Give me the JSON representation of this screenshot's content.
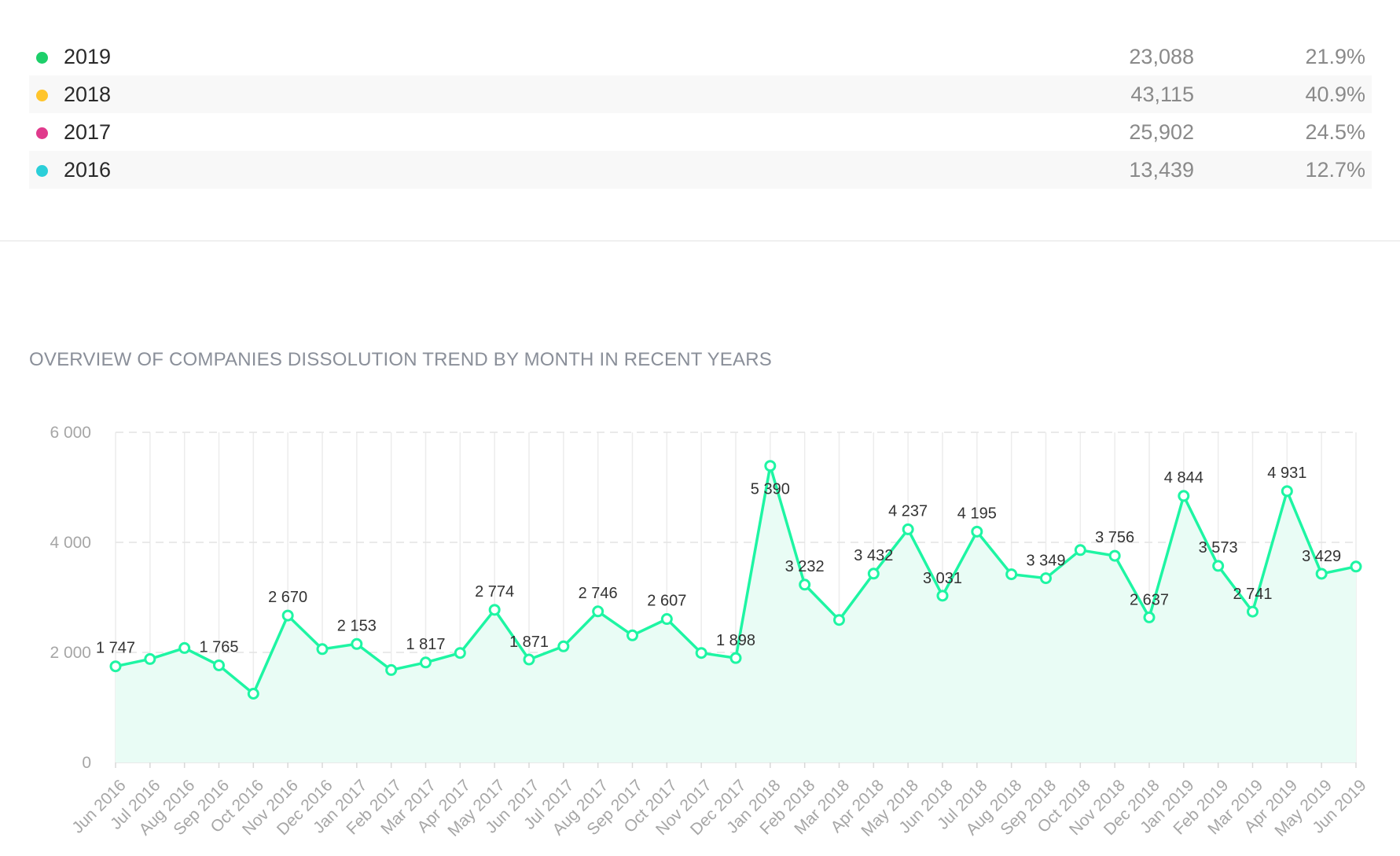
{
  "legend": {
    "rows": [
      {
        "label": "2019",
        "count": "23,088",
        "pct": "21.9%",
        "color": "#1dcf6a"
      },
      {
        "label": "2018",
        "count": "43,115",
        "pct": "40.9%",
        "color": "#ffc52c"
      },
      {
        "label": "2017",
        "count": "25,902",
        "pct": "24.5%",
        "color": "#e03a8c"
      },
      {
        "label": "2016",
        "count": "13,439",
        "pct": "12.7%",
        "color": "#2bcfd9"
      }
    ]
  },
  "chart_title": "OVERVIEW OF COMPANIES DISSOLUTION TREND BY MONTH IN RECENT YEARS",
  "chart_data": {
    "type": "area",
    "title": "OVERVIEW OF COMPANIES DISSOLUTION TREND BY MONTH IN RECENT YEARS",
    "xlabel": "",
    "ylabel": "",
    "ylim": [
      0,
      6000
    ],
    "yticks": [
      "0",
      "2 000",
      "4 000",
      "6 000"
    ],
    "grid": true,
    "line_color": "#1ef5a3",
    "fill_color": "#e9fcf5",
    "categories": [
      "Jun 2016",
      "Jul 2016",
      "Aug 2016",
      "Sep 2016",
      "Oct 2016",
      "Nov 2016",
      "Dec 2016",
      "Jan 2017",
      "Feb 2017",
      "Mar 2017",
      "Apr 2017",
      "May 2017",
      "Jun 2017",
      "Jul 2017",
      "Aug 2017",
      "Sep 2017",
      "Oct 2017",
      "Nov 2017",
      "Dec 2017",
      "Jan 2018",
      "Feb 2018",
      "Mar 2018",
      "Apr 2018",
      "May 2018",
      "Jun 2018",
      "Jul 2018",
      "Aug 2018",
      "Sep 2018",
      "Oct 2018",
      "Nov 2018",
      "Dec 2018",
      "Jan 2019",
      "Feb 2019",
      "Mar 2019",
      "Apr 2019",
      "May 2019",
      "Jun 2019"
    ],
    "values": [
      1747,
      1880,
      2080,
      1765,
      1250,
      2670,
      2060,
      2153,
      1680,
      1817,
      1990,
      2774,
      1871,
      2110,
      2746,
      2310,
      2607,
      1990,
      1898,
      5390,
      3232,
      2590,
      3432,
      4237,
      3031,
      4195,
      3420,
      3349,
      3860,
      3756,
      2637,
      4844,
      3573,
      2741,
      4931,
      3429,
      3560
    ],
    "data_labels": [
      "1 747",
      null,
      null,
      "1 765",
      null,
      "2 670",
      null,
      "2 153",
      null,
      "1 817",
      null,
      "2 774",
      "1 871",
      null,
      "2 746",
      null,
      "2 607",
      null,
      "1 898",
      "5 390",
      "3 232",
      null,
      "3 432",
      "4 237",
      "3 031",
      "4 195",
      null,
      "3 349",
      null,
      "3 756",
      "2 637",
      "4 844",
      "3 573",
      "2 741",
      "4 931",
      "3 429",
      null
    ]
  }
}
